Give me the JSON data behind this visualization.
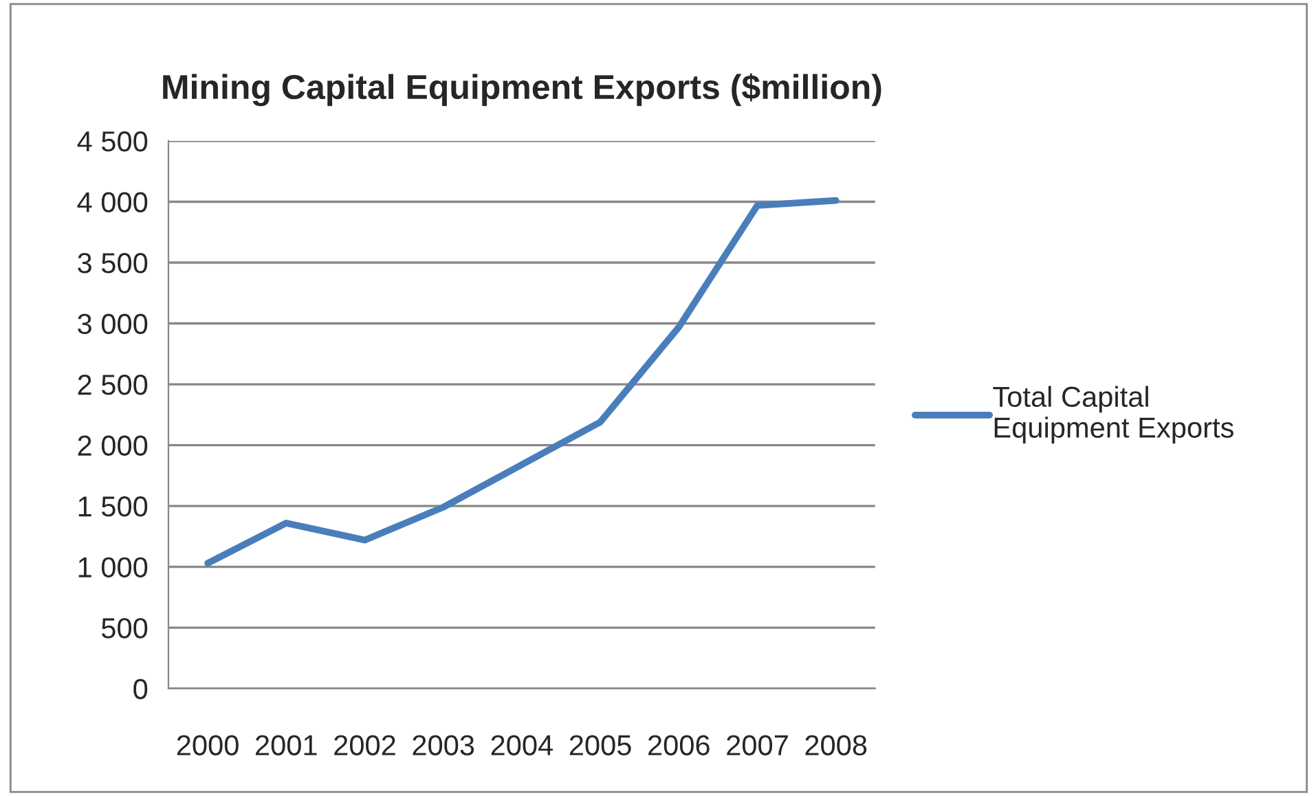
{
  "chart_data": {
    "type": "line",
    "title": "Mining Capital Equipment Exports ($million)",
    "categories": [
      "2000",
      "2001",
      "2002",
      "2003",
      "2004",
      "2005",
      "2006",
      "2007",
      "2008"
    ],
    "series": [
      {
        "name": "Total Capital\nEquipment Exports",
        "color": "#4a7ebb",
        "values": [
          1030,
          1360,
          1220,
          1490,
          1840,
          2190,
          2970,
          3970,
          4010
        ]
      }
    ],
    "ylim": [
      0,
      4500
    ],
    "yticks": [
      0,
      500,
      {
        "value": 1000,
        "label": "1 000"
      },
      {
        "value": 1500,
        "label": "1 500"
      },
      {
        "value": 2000,
        "label": "2 000"
      },
      {
        "value": 2500,
        "label": "2 500"
      },
      {
        "value": 3000,
        "label": "3 000"
      },
      {
        "value": 3500,
        "label": "3 500"
      },
      {
        "value": 4000,
        "label": "4 000"
      },
      {
        "value": 4500,
        "label": "4 500"
      }
    ],
    "grid": "y",
    "legend": "right",
    "marker": "none",
    "line_style": "solid"
  }
}
